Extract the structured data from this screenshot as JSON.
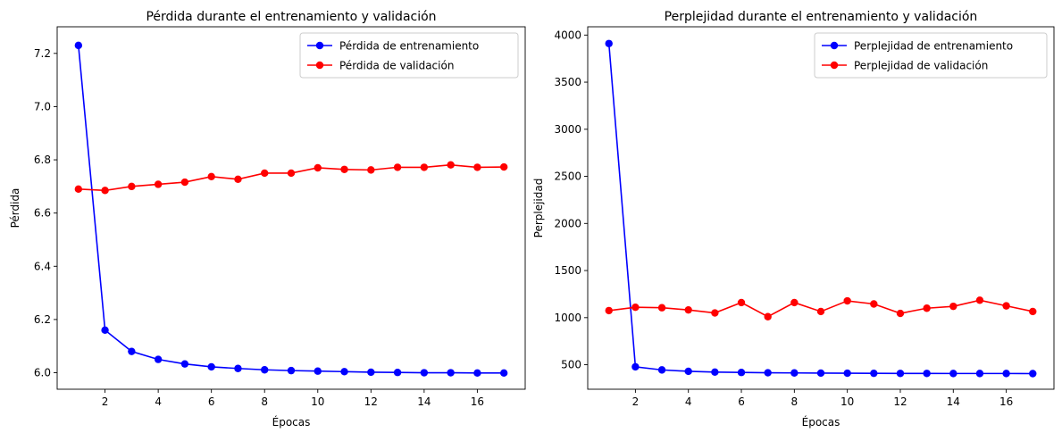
{
  "chart_data": [
    {
      "type": "line",
      "title": "Pérdida durante el entrenamiento y validación",
      "xlabel": "Épocas",
      "ylabel": "Pérdida",
      "xlim": [
        0.2,
        17.8
      ],
      "ylim": [
        5.938,
        7.3
      ],
      "xticks": [
        2,
        4,
        6,
        8,
        10,
        12,
        14,
        16
      ],
      "yticks": [
        6.0,
        6.2,
        6.4,
        6.6,
        6.8,
        7.0,
        7.2
      ],
      "ytick_labels": [
        "6.0",
        "6.2",
        "6.4",
        "6.6",
        "6.8",
        "7.0",
        "7.2"
      ],
      "legend_position": "top-right",
      "grid": false,
      "x": [
        1,
        2,
        3,
        4,
        5,
        6,
        7,
        8,
        9,
        10,
        11,
        12,
        13,
        14,
        15,
        16,
        17
      ],
      "series": [
        {
          "name": "Pérdida de entrenamiento",
          "color": "#0000ff",
          "values": [
            7.23,
            6.16,
            6.08,
            6.05,
            6.033,
            6.022,
            6.016,
            6.011,
            6.008,
            6.006,
            6.004,
            6.002,
            6.001,
            6.0,
            6.0,
            5.999,
            5.999
          ]
        },
        {
          "name": "Pérdida de validación",
          "color": "#ff0000",
          "values": [
            6.69,
            6.685,
            6.7,
            6.708,
            6.716,
            6.737,
            6.727,
            6.75,
            6.75,
            6.77,
            6.764,
            6.762,
            6.772,
            6.772,
            6.781,
            6.772,
            6.773
          ]
        }
      ]
    },
    {
      "type": "line",
      "title": "Perplejidad durante el entrenamiento y validación",
      "xlabel": "Épocas",
      "ylabel": "Perplejidad",
      "xlim": [
        0.2,
        17.8
      ],
      "ylim": [
        240,
        4088
      ],
      "xticks": [
        2,
        4,
        6,
        8,
        10,
        12,
        14,
        16
      ],
      "yticks": [
        500,
        1000,
        1500,
        2000,
        2500,
        3000,
        3500,
        4000
      ],
      "ytick_labels": [
        "500",
        "1000",
        "1500",
        "2000",
        "2500",
        "3000",
        "3500",
        "4000"
      ],
      "legend_position": "top-right",
      "grid": false,
      "x": [
        1,
        2,
        3,
        4,
        5,
        6,
        7,
        8,
        9,
        10,
        11,
        12,
        13,
        14,
        15,
        16,
        17
      ],
      "series": [
        {
          "name": "Perplejidad de entrenamiento",
          "color": "#0000ff",
          "values": [
            3910,
            478,
            445,
            430,
            422,
            418,
            415,
            413,
            411,
            410,
            409,
            408,
            408,
            407,
            407,
            407,
            406
          ]
        },
        {
          "name": "Perplejidad de validación",
          "color": "#ff0000",
          "values": [
            1075,
            1110,
            1105,
            1082,
            1050,
            1160,
            1010,
            1160,
            1065,
            1178,
            1145,
            1045,
            1100,
            1120,
            1185,
            1125,
            1065
          ]
        }
      ]
    }
  ]
}
